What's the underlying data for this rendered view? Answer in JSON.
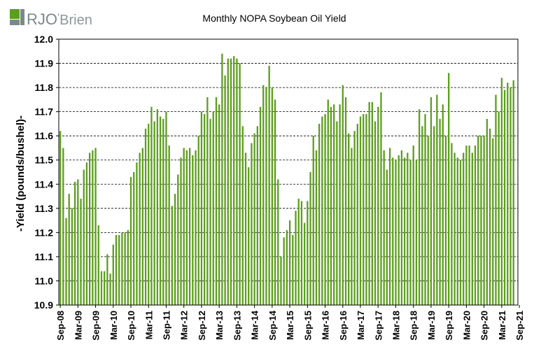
{
  "logo": {
    "text": "RJO",
    "apostrophe": "’",
    "suffix": "Brien"
  },
  "chart_data": {
    "type": "bar",
    "title": "Monthly NOPA Soybean Oil Yield",
    "ylabel": "-Yield (pounds/bushel)-",
    "xlabel": "",
    "ylim": [
      10.9,
      12.0
    ],
    "yticks": [
      "10.9",
      "11.0",
      "11.1",
      "11.2",
      "11.3",
      "11.4",
      "11.5",
      "11.6",
      "11.7",
      "11.8",
      "11.9",
      "12.0"
    ],
    "xtick_labels": [
      "Sep-08",
      "Mar-09",
      "Sep-09",
      "Mar-10",
      "Sep-10",
      "Mar-11",
      "Sep-11",
      "Mar-12",
      "Sep-12",
      "Mar-13",
      "Sep-13",
      "Mar-14",
      "Sep-14",
      "Mar-15",
      "Sep-15",
      "Mar-16",
      "Sep-16",
      "Mar-17",
      "Sep-17",
      "Mar-18",
      "Sep-18",
      "Mar-19",
      "Sep-19",
      "Mar-20",
      "Sep-20",
      "Mar-21",
      "Sep-21"
    ],
    "start": "Sep-08",
    "grid": true,
    "bar_color": "#5c9e1e",
    "values": [
      11.62,
      11.55,
      11.26,
      11.36,
      11.3,
      11.41,
      11.42,
      11.34,
      11.46,
      11.49,
      11.53,
      11.54,
      11.55,
      11.23,
      11.04,
      11.04,
      11.11,
      11.03,
      11.15,
      11.19,
      11.19,
      11.2,
      11.2,
      11.21,
      11.43,
      11.45,
      11.49,
      11.53,
      11.55,
      11.63,
      11.65,
      11.72,
      11.66,
      11.71,
      11.68,
      11.67,
      11.7,
      11.56,
      11.31,
      11.36,
      11.44,
      11.51,
      11.55,
      11.54,
      11.55,
      11.52,
      11.54,
      11.6,
      11.7,
      11.69,
      11.76,
      11.67,
      11.7,
      11.76,
      11.73,
      11.94,
      11.85,
      11.92,
      11.92,
      11.93,
      11.92,
      11.9,
      11.64,
      11.53,
      11.47,
      11.57,
      11.61,
      11.64,
      11.72,
      11.81,
      11.8,
      11.89,
      11.8,
      11.75,
      11.42,
      11.1,
      11.18,
      11.21,
      11.25,
      11.19,
      11.29,
      11.34,
      11.33,
      11.24,
      11.33,
      11.45,
      11.6,
      11.54,
      11.65,
      11.68,
      11.69,
      11.75,
      11.72,
      11.73,
      11.66,
      11.73,
      11.81,
      11.76,
      11.61,
      11.55,
      11.62,
      11.65,
      11.68,
      11.69,
      11.69,
      11.74,
      11.74,
      11.66,
      11.72,
      11.78,
      11.54,
      11.46,
      11.55,
      11.51,
      11.5,
      11.52,
      11.54,
      11.51,
      11.53,
      11.5,
      11.56,
      11.5,
      11.71,
      11.64,
      11.69,
      11.6,
      11.76,
      11.64,
      11.77,
      11.67,
      11.73,
      11.6,
      11.86,
      11.57,
      11.53,
      11.51,
      11.5,
      11.53,
      11.56,
      11.56,
      11.53,
      11.56,
      11.6,
      11.6,
      11.6,
      11.67,
      11.63,
      11.59,
      11.77,
      11.7,
      11.84,
      11.79,
      11.82,
      11.8,
      11.83
    ]
  }
}
